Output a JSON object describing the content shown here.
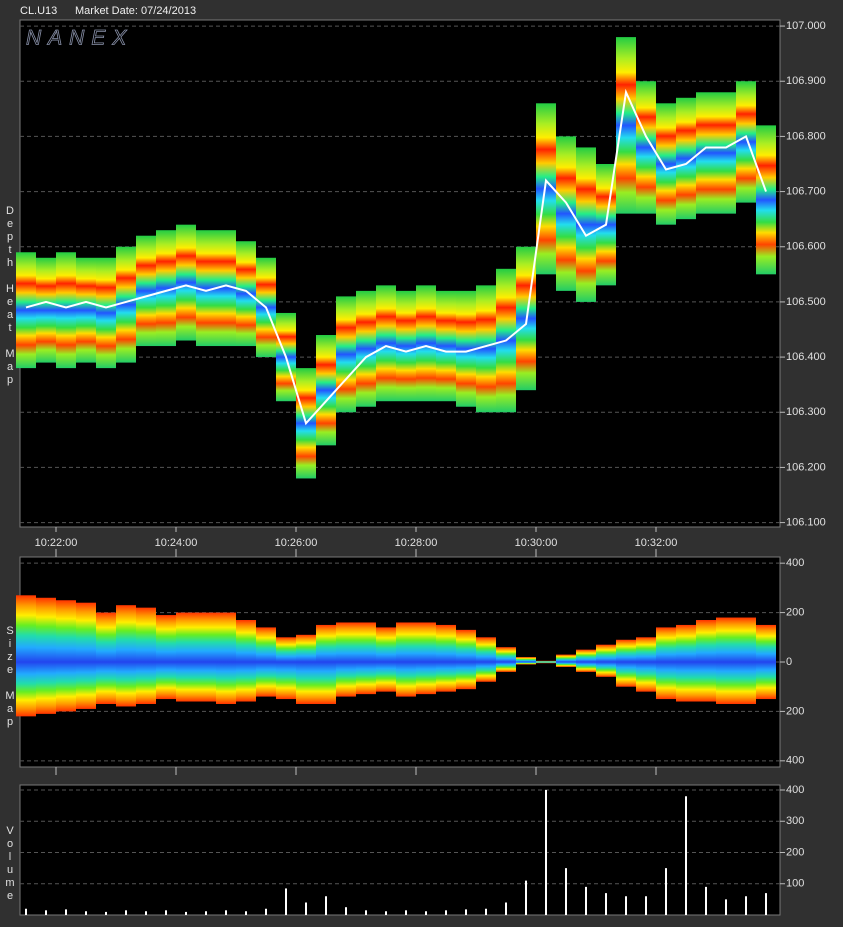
{
  "header": {
    "symbol": "CL.U13",
    "market_date": "Market Date: 07/24/2013",
    "brand": "NANEX"
  },
  "chart_data": [
    {
      "type": "heatmap",
      "side_label": "Depth Heat Map",
      "x": [
        "10:21:30",
        "10:21:50",
        "10:22:10",
        "10:22:30",
        "10:22:50",
        "10:23:10",
        "10:23:30",
        "10:23:50",
        "10:24:10",
        "10:24:30",
        "10:24:50",
        "10:25:10",
        "10:25:30",
        "10:25:50",
        "10:26:10",
        "10:26:30",
        "10:26:50",
        "10:27:10",
        "10:27:30",
        "10:27:50",
        "10:28:10",
        "10:28:30",
        "10:28:50",
        "10:29:10",
        "10:29:30",
        "10:29:50",
        "10:30:10",
        "10:30:30",
        "10:30:50",
        "10:31:10",
        "10:31:30",
        "10:31:50",
        "10:32:10",
        "10:32:30",
        "10:32:50",
        "10:33:10",
        "10:33:30",
        "10:33:50"
      ],
      "high": [
        106.59,
        106.58,
        106.59,
        106.58,
        106.58,
        106.6,
        106.62,
        106.63,
        106.64,
        106.63,
        106.63,
        106.61,
        106.58,
        106.48,
        106.38,
        106.44,
        106.51,
        106.52,
        106.53,
        106.52,
        106.53,
        106.52,
        106.52,
        106.53,
        106.56,
        106.6,
        106.86,
        106.8,
        106.78,
        106.75,
        106.98,
        106.9,
        106.86,
        106.87,
        106.88,
        106.88,
        106.9,
        106.82
      ],
      "low": [
        106.38,
        106.39,
        106.38,
        106.39,
        106.38,
        106.39,
        106.42,
        106.42,
        106.43,
        106.42,
        106.42,
        106.42,
        106.4,
        106.32,
        106.18,
        106.24,
        106.3,
        106.31,
        106.32,
        106.32,
        106.32,
        106.32,
        106.31,
        106.3,
        106.3,
        106.34,
        106.55,
        106.52,
        106.5,
        106.53,
        106.66,
        106.66,
        106.64,
        106.65,
        106.66,
        106.66,
        106.68,
        106.55
      ],
      "mid": [
        106.49,
        106.5,
        106.49,
        106.5,
        106.49,
        106.5,
        106.51,
        106.52,
        106.53,
        106.52,
        106.53,
        106.52,
        106.49,
        106.4,
        106.28,
        106.32,
        106.36,
        106.4,
        106.42,
        106.41,
        106.42,
        106.41,
        106.41,
        106.42,
        106.43,
        106.46,
        106.72,
        106.68,
        106.62,
        106.64,
        106.88,
        106.8,
        106.74,
        106.75,
        106.78,
        106.78,
        106.8,
        106.7
      ],
      "mid_color": "#ffffff",
      "xlim": [
        "10:21:24",
        "10:34:04"
      ],
      "xticks": [
        "10:22:00",
        "10:24:00",
        "10:26:00",
        "10:28:00",
        "10:30:00",
        "10:32:00"
      ],
      "ylim": [
        106.092,
        107.011
      ],
      "yticks": [
        {
          "value": 106.1,
          "label": "106.100"
        },
        {
          "value": 106.2,
          "label": "106.200"
        },
        {
          "value": 106.3,
          "label": "106.300"
        },
        {
          "value": 106.4,
          "label": "106.400"
        },
        {
          "value": 106.5,
          "label": "106.500"
        },
        {
          "value": 106.6,
          "label": "106.600"
        },
        {
          "value": 106.7,
          "label": "106.700"
        },
        {
          "value": 106.8,
          "label": "106.800"
        },
        {
          "value": 106.9,
          "label": "106.900"
        },
        {
          "value": 107,
          "label": "107.000"
        }
      ],
      "grid": true
    },
    {
      "type": "size",
      "side_label": "Size Map",
      "x": [
        "10:21:30",
        "10:21:50",
        "10:22:10",
        "10:22:30",
        "10:22:50",
        "10:23:10",
        "10:23:30",
        "10:23:50",
        "10:24:10",
        "10:24:30",
        "10:24:50",
        "10:25:10",
        "10:25:30",
        "10:25:50",
        "10:26:10",
        "10:26:30",
        "10:26:50",
        "10:27:10",
        "10:27:30",
        "10:27:50",
        "10:28:10",
        "10:28:30",
        "10:28:50",
        "10:29:10",
        "10:29:30",
        "10:29:50",
        "10:30:10",
        "10:30:30",
        "10:30:50",
        "10:31:10",
        "10:31:30",
        "10:31:50",
        "10:32:10",
        "10:32:30",
        "10:32:50",
        "10:33:10",
        "10:33:30",
        "10:33:50"
      ],
      "upper": [
        270,
        260,
        250,
        240,
        200,
        230,
        220,
        190,
        200,
        200,
        200,
        170,
        140,
        100,
        110,
        150,
        160,
        160,
        140,
        160,
        160,
        150,
        130,
        100,
        60,
        20,
        5,
        30,
        50,
        70,
        90,
        100,
        140,
        150,
        170,
        180,
        180,
        150
      ],
      "lower": [
        -220,
        -210,
        -200,
        -190,
        -170,
        -180,
        -170,
        -150,
        -160,
        -160,
        -170,
        -160,
        -140,
        -150,
        -170,
        -170,
        -140,
        -130,
        -120,
        -140,
        -130,
        -120,
        -110,
        -80,
        -40,
        -10,
        -5,
        -20,
        -40,
        -60,
        -100,
        -120,
        -150,
        -160,
        -160,
        -170,
        -170,
        -150
      ],
      "ylim": [
        -425,
        425
      ],
      "yticks": [
        {
          "value": -400,
          "label": "400"
        },
        {
          "value": -200,
          "label": "200"
        },
        0,
        200,
        400
      ],
      "grid": true
    },
    {
      "type": "volume",
      "side_label": "Volume",
      "x": [
        "10:21:30",
        "10:21:50",
        "10:22:10",
        "10:22:30",
        "10:22:50",
        "10:23:10",
        "10:23:30",
        "10:23:50",
        "10:24:10",
        "10:24:30",
        "10:24:50",
        "10:25:10",
        "10:25:30",
        "10:25:50",
        "10:26:10",
        "10:26:30",
        "10:26:50",
        "10:27:10",
        "10:27:30",
        "10:27:50",
        "10:28:10",
        "10:28:30",
        "10:28:50",
        "10:29:10",
        "10:29:30",
        "10:29:50",
        "10:30:10",
        "10:30:30",
        "10:30:50",
        "10:31:10",
        "10:31:30",
        "10:31:50",
        "10:32:10",
        "10:32:30",
        "10:32:50",
        "10:33:10",
        "10:33:30",
        "10:33:50"
      ],
      "values": [
        20,
        15,
        18,
        12,
        10,
        15,
        12,
        15,
        10,
        12,
        15,
        12,
        20,
        85,
        40,
        60,
        25,
        15,
        12,
        15,
        12,
        15,
        18,
        20,
        40,
        110,
        400,
        150,
        90,
        70,
        60,
        60,
        150,
        380,
        90,
        50,
        60,
        70
      ],
      "color": "#ffffff",
      "ylim": [
        0,
        416
      ],
      "yticks": [
        100,
        200,
        300,
        400
      ],
      "grid": true
    }
  ]
}
